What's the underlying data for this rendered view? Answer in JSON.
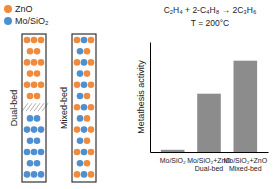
{
  "chart_data": {
    "type": "bar",
    "y_label": "Metathesis activity",
    "annotations": [
      "C₂H₄ + 2-C₄H₈ → 2C₃H₆",
      "T = 200°C"
    ],
    "categories": [
      "Mo/SiO₂",
      "Mo/SiO₂+ZnO\nDual-bed",
      "Mo/SiO₂+ZnO\nMixed-bed"
    ],
    "values": [
      2,
      53,
      83
    ],
    "color": "#8c8c8c",
    "ylim": [
      0,
      100
    ],
    "yticks": [],
    "tick_labels": "x"
  },
  "diagram": {
    "legend": [
      {
        "label": "ZnO",
        "color": "#f08a3c"
      },
      {
        "label": "Mo/SiO₂",
        "color": "#4f8fd0"
      }
    ],
    "tubes": [
      "Dual-bed",
      "Mixed-bed"
    ]
  }
}
